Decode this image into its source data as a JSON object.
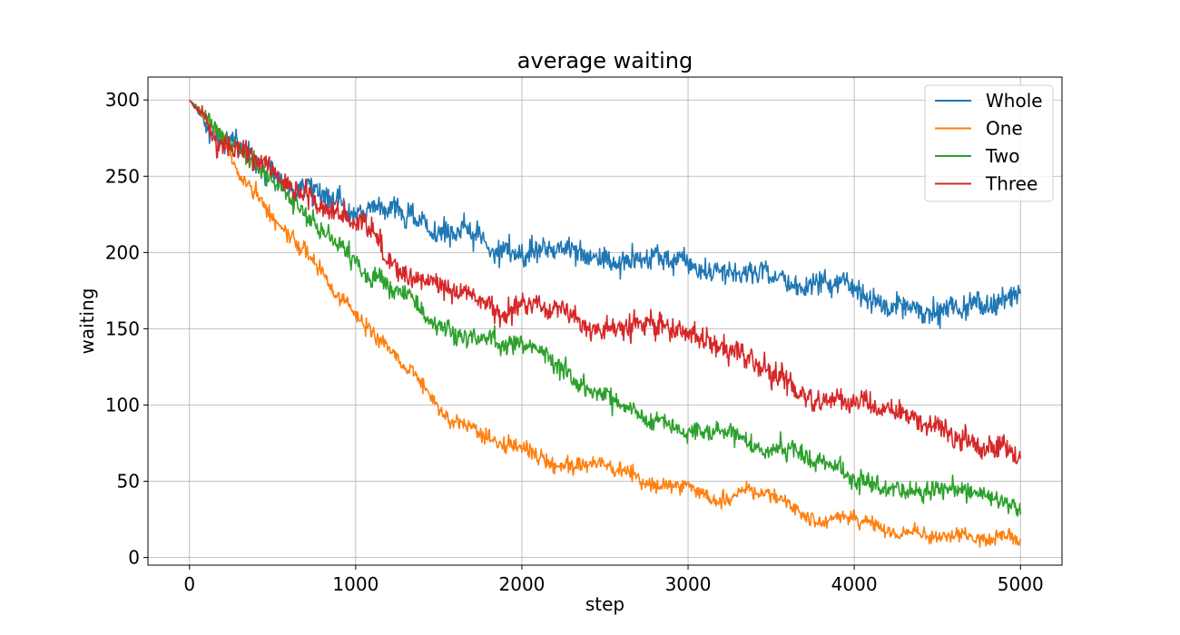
{
  "chart_data": {
    "type": "line",
    "title": "average waiting",
    "xlabel": "step",
    "ylabel": "waiting",
    "xlim": [
      -250,
      5250
    ],
    "ylim": [
      -5,
      315
    ],
    "xticks": [
      0,
      1000,
      2000,
      3000,
      4000,
      5000
    ],
    "xtick_labels": [
      "0",
      "1000",
      "2000",
      "3000",
      "4000",
      "5000"
    ],
    "yticks": [
      0,
      50,
      100,
      150,
      200,
      250,
      300
    ],
    "ytick_labels": [
      "0",
      "50",
      "100",
      "150",
      "200",
      "250",
      "300"
    ],
    "grid": true,
    "legend_position": "top-right",
    "x": [
      0,
      100,
      200,
      300,
      400,
      500,
      600,
      700,
      800,
      900,
      1000,
      1100,
      1200,
      1300,
      1400,
      1500,
      1600,
      1700,
      1800,
      1900,
      2000,
      2100,
      2200,
      2300,
      2400,
      2500,
      2600,
      2700,
      2800,
      2900,
      3000,
      3100,
      3200,
      3300,
      3400,
      3500,
      3600,
      3700,
      3800,
      3900,
      4000,
      4100,
      4200,
      4300,
      4400,
      4500,
      4600,
      4700,
      4800,
      4900,
      5000
    ],
    "series": [
      {
        "name": "Whole",
        "color": "#1f77b4",
        "noise": 5,
        "values": [
          300,
          285,
          276,
          270,
          262,
          256,
          250,
          245,
          240,
          236,
          230,
          225,
          220,
          215,
          213,
          208,
          205,
          203,
          200,
          198,
          196,
          196,
          196,
          195,
          195,
          193,
          192,
          190,
          190,
          188,
          187,
          186,
          185,
          184,
          183,
          182,
          181,
          180,
          178,
          177,
          176,
          175,
          174,
          173,
          172,
          170,
          169,
          168,
          168,
          167,
          167
        ]
      },
      {
        "name": "One",
        "color": "#ff7f0e",
        "noise": 3,
        "values": [
          300,
          287,
          272,
          255,
          240,
          226,
          213,
          200,
          186,
          170,
          155,
          143,
          130,
          117,
          107,
          97,
          88,
          84,
          80,
          75,
          70,
          66,
          63,
          63,
          60,
          57,
          53,
          50,
          48,
          47,
          47,
          44,
          42,
          40,
          39,
          37,
          34,
          31,
          29,
          28,
          27,
          23,
          20,
          21,
          18,
          15,
          14,
          14,
          14,
          14,
          13
        ]
      },
      {
        "name": "Two",
        "color": "#2ca02c",
        "noise": 4,
        "values": [
          300,
          288,
          277,
          268,
          257,
          248,
          238,
          228,
          218,
          208,
          198,
          190,
          180,
          170,
          160,
          152,
          150,
          148,
          140,
          132,
          128,
          125,
          118,
          115,
          112,
          108,
          102,
          97,
          92,
          88,
          84,
          82,
          78,
          74,
          70,
          68,
          63,
          60,
          58,
          56,
          52,
          48,
          45,
          44,
          43,
          40,
          37,
          35,
          33,
          31,
          30
        ]
      },
      {
        "name": "Three",
        "color": "#d62728",
        "noise": 5,
        "values": [
          300,
          285,
          273,
          267,
          260,
          252,
          245,
          238,
          230,
          224,
          217,
          208,
          198,
          190,
          183,
          177,
          172,
          167,
          163,
          161,
          160,
          160,
          160,
          155,
          148,
          146,
          146,
          145,
          145,
          142,
          138,
          133,
          128,
          123,
          119,
          116,
          115,
          112,
          108,
          105,
          101,
          97,
          92,
          88,
          84,
          80,
          75,
          72,
          68,
          65,
          62
        ]
      }
    ]
  }
}
